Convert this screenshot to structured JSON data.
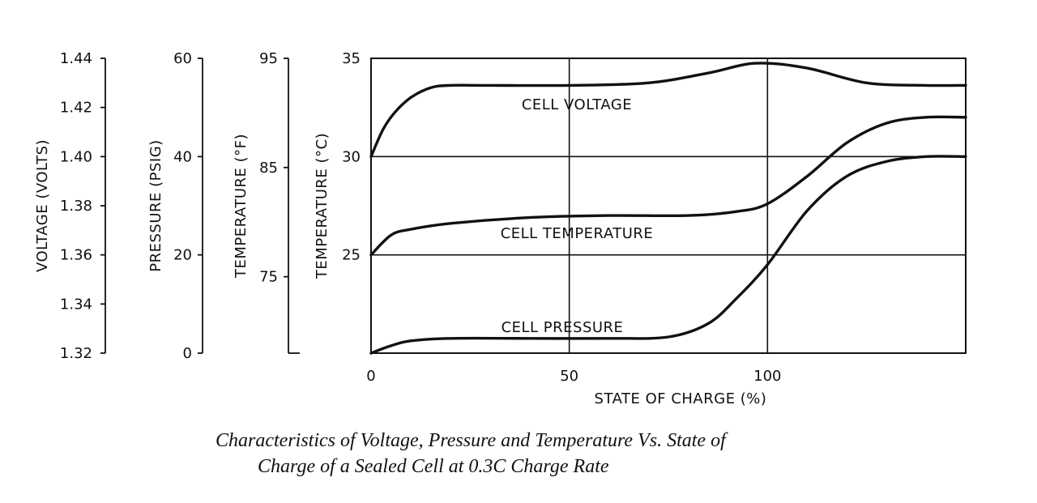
{
  "chart_data": {
    "type": "line",
    "caption_line1": "Characteristics of Voltage, Pressure and Temperature Vs. State of",
    "caption_line2": "Charge of a Sealed Cell at 0.3C Charge Rate",
    "xlabel": "STATE OF CHARGE (%)",
    "xlim": [
      0,
      150
    ],
    "x_ticks": [
      "0",
      "50",
      "100"
    ],
    "x_tick_values": [
      0,
      50,
      100
    ],
    "grid": true,
    "axes": {
      "voltage": {
        "label": "VOLTAGE (VOLTS)",
        "ylim": [
          1.32,
          1.44
        ],
        "ticks": [
          "1.44",
          "1.42",
          "1.40",
          "1.38",
          "1.36",
          "1.34",
          "1.32"
        ],
        "tick_values": [
          1.44,
          1.42,
          1.4,
          1.38,
          1.36,
          1.34,
          1.32
        ]
      },
      "pressure": {
        "label": "PRESSURE (PSIG)",
        "ylim": [
          0,
          60
        ],
        "ticks": [
          "60",
          "40",
          "20",
          "0"
        ],
        "tick_values": [
          60,
          40,
          20,
          0
        ]
      },
      "temp_f": {
        "label": "TEMPERATURE (°F)",
        "ylim": [
          68,
          95
        ],
        "ticks": [
          "95",
          "85",
          "75"
        ],
        "tick_values": [
          95,
          85,
          75
        ]
      },
      "temp_c": {
        "label": "TEMPERATURE (°C)",
        "ylim": [
          20,
          35
        ],
        "ticks": [
          "35",
          "30",
          "25"
        ],
        "tick_values": [
          35,
          30,
          25
        ]
      }
    },
    "series": [
      {
        "name": "CELL VOLTAGE",
        "axis": "voltage",
        "x": [
          0,
          3,
          6,
          10,
          15,
          20,
          30,
          50,
          70,
          85,
          97,
          110,
          125,
          140,
          150
        ],
        "values": [
          1.4,
          1.411,
          1.418,
          1.424,
          1.428,
          1.429,
          1.429,
          1.429,
          1.43,
          1.434,
          1.438,
          1.436,
          1.43,
          1.429,
          1.429
        ]
      },
      {
        "name": "CELL TEMPERATURE",
        "axis": "temp_c",
        "x": [
          0,
          5,
          10,
          20,
          40,
          60,
          80,
          92,
          100,
          110,
          120,
          130,
          140,
          150
        ],
        "values": [
          25.0,
          26.0,
          26.3,
          26.6,
          26.9,
          27.0,
          27.0,
          27.2,
          27.6,
          29.0,
          30.7,
          31.7,
          32.0,
          32.0
        ]
      },
      {
        "name": "CELL PRESSURE",
        "axis": "pressure",
        "x": [
          0,
          5,
          10,
          20,
          40,
          60,
          75,
          85,
          92,
          100,
          110,
          120,
          130,
          140,
          150
        ],
        "values": [
          0.0,
          1.5,
          2.5,
          3.0,
          3.0,
          3.0,
          3.3,
          6.0,
          11.0,
          18.0,
          29.0,
          36.0,
          39.0,
          40.0,
          40.0
        ]
      }
    ]
  }
}
